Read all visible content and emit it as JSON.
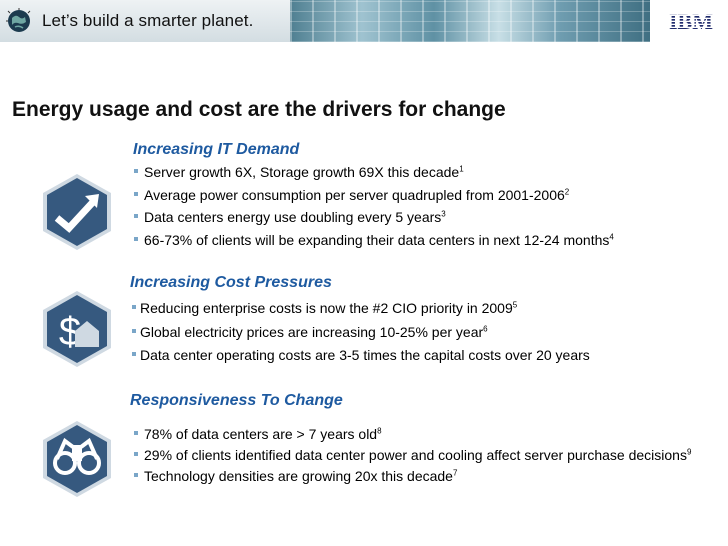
{
  "header": {
    "tagline": "Let’s build a smarter planet.",
    "logo_text": "IBM"
  },
  "title": "Energy usage and cost  are the drivers for change",
  "sections": [
    {
      "heading": "Increasing IT Demand",
      "icon": "trend-arrow-icon",
      "items": [
        {
          "text": "Server growth 6X, Storage growth 69X this decade",
          "sup": "1"
        },
        {
          "text": "Average power consumption per server quadrupled from 2001-2006",
          "sup": "2"
        },
        {
          "text": "Data centers energy use doubling every 5 years",
          "sup": "3"
        },
        {
          "text": "66-73% of clients will be expanding their data centers in next 12-24 months",
          "sup": "4"
        }
      ]
    },
    {
      "heading": "Increasing Cost Pressures",
      "icon": "dollar-house-icon",
      "items": [
        {
          "text": "Reducing enterprise costs is now the #2 CIO priority in 2009",
          "sup": "5"
        },
        {
          "text": "Global electricity prices are increasing 10-25% per year",
          "sup": "6"
        },
        {
          "text": "Data center operating costs are 3-5 times the capital costs over 20 years",
          "sup": ""
        }
      ]
    },
    {
      "heading": "Responsiveness To Change",
      "icon": "binoculars-icon",
      "items": [
        {
          "text": "78% of data centers are > 7 years old",
          "sup": "8"
        },
        {
          "text": "29% of clients identified data center power and cooling affect server purchase decisions",
          "sup": "9"
        },
        {
          "text": "Technology densities are growing 20x this decade",
          "sup": "7"
        }
      ]
    }
  ],
  "colors": {
    "accent": "#1e5aa0",
    "icon_bg": "#36597f",
    "bullet": "#7aa6c8"
  }
}
